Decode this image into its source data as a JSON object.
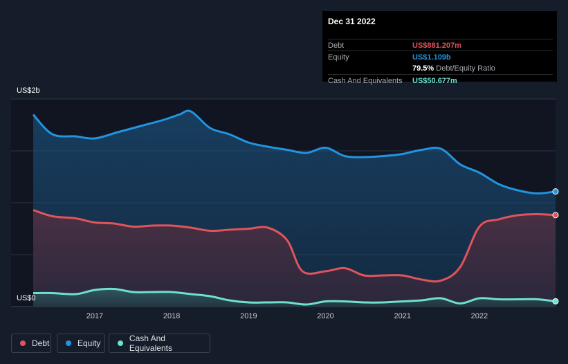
{
  "colors": {
    "debt": "#e0545c",
    "equity": "#2394df",
    "cash": "#6ee0cf",
    "background": "#161d2a",
    "plot_background": "#101521",
    "grid": "#2c3442"
  },
  "tooltip": {
    "date": "Dec 31 2022",
    "debt_label": "Debt",
    "debt_value": "US$881.207m",
    "equity_label": "Equity",
    "equity_value": "US$1.109b",
    "ratio_value": "79.5%",
    "ratio_label": "Debt/Equity Ratio",
    "cash_label": "Cash And Equivalents",
    "cash_value": "US$50.677m"
  },
  "legend": {
    "debt": "Debt",
    "equity": "Equity",
    "cash": "Cash And Equivalents"
  },
  "chart_data": {
    "type": "area",
    "x_range": [
      2016.2,
      2022.99
    ],
    "y_range": [
      0,
      2
    ],
    "y_tick_labels": {
      "top": "US$2b",
      "bottom": "US$0"
    },
    "x_ticks": [
      2017,
      2018,
      2019,
      2020,
      2021,
      2022
    ],
    "grid": true,
    "legend_position": "bottom-left",
    "series": [
      {
        "key": "equity",
        "name": "Equity",
        "points": [
          [
            2016.2,
            1.85
          ],
          [
            2016.45,
            1.66
          ],
          [
            2016.75,
            1.64
          ],
          [
            2017.0,
            1.62
          ],
          [
            2017.3,
            1.68
          ],
          [
            2017.6,
            1.74
          ],
          [
            2017.9,
            1.8
          ],
          [
            2018.1,
            1.85
          ],
          [
            2018.25,
            1.88
          ],
          [
            2018.5,
            1.72
          ],
          [
            2018.75,
            1.66
          ],
          [
            2019.0,
            1.58
          ],
          [
            2019.25,
            1.54
          ],
          [
            2019.5,
            1.51
          ],
          [
            2019.75,
            1.48
          ],
          [
            2020.0,
            1.53
          ],
          [
            2020.25,
            1.45
          ],
          [
            2020.5,
            1.44
          ],
          [
            2020.75,
            1.45
          ],
          [
            2021.0,
            1.47
          ],
          [
            2021.25,
            1.51
          ],
          [
            2021.5,
            1.52
          ],
          [
            2021.75,
            1.37
          ],
          [
            2022.0,
            1.29
          ],
          [
            2022.25,
            1.18
          ],
          [
            2022.5,
            1.12
          ],
          [
            2022.75,
            1.09
          ],
          [
            2022.99,
            1.109
          ]
        ]
      },
      {
        "key": "debt",
        "name": "Debt",
        "points": [
          [
            2016.2,
            0.93
          ],
          [
            2016.45,
            0.87
          ],
          [
            2016.75,
            0.85
          ],
          [
            2017.0,
            0.81
          ],
          [
            2017.25,
            0.8
          ],
          [
            2017.5,
            0.77
          ],
          [
            2017.75,
            0.78
          ],
          [
            2018.0,
            0.78
          ],
          [
            2018.25,
            0.76
          ],
          [
            2018.5,
            0.73
          ],
          [
            2018.75,
            0.74
          ],
          [
            2019.0,
            0.75
          ],
          [
            2019.25,
            0.76
          ],
          [
            2019.5,
            0.64
          ],
          [
            2019.7,
            0.34
          ],
          [
            2020.0,
            0.34
          ],
          [
            2020.25,
            0.37
          ],
          [
            2020.5,
            0.3
          ],
          [
            2020.75,
            0.3
          ],
          [
            2021.0,
            0.3
          ],
          [
            2021.25,
            0.26
          ],
          [
            2021.5,
            0.25
          ],
          [
            2021.75,
            0.38
          ],
          [
            2022.0,
            0.77
          ],
          [
            2022.25,
            0.84
          ],
          [
            2022.5,
            0.88
          ],
          [
            2022.75,
            0.89
          ],
          [
            2022.99,
            0.881
          ]
        ]
      },
      {
        "key": "cash",
        "name": "Cash And Equivalents",
        "points": [
          [
            2016.2,
            0.13
          ],
          [
            2016.45,
            0.13
          ],
          [
            2016.75,
            0.12
          ],
          [
            2017.0,
            0.16
          ],
          [
            2017.25,
            0.17
          ],
          [
            2017.5,
            0.14
          ],
          [
            2017.75,
            0.14
          ],
          [
            2018.0,
            0.14
          ],
          [
            2018.25,
            0.12
          ],
          [
            2018.5,
            0.1
          ],
          [
            2018.75,
            0.06
          ],
          [
            2019.0,
            0.04
          ],
          [
            2019.25,
            0.04
          ],
          [
            2019.5,
            0.04
          ],
          [
            2019.75,
            0.02
          ],
          [
            2020.0,
            0.05
          ],
          [
            2020.25,
            0.05
          ],
          [
            2020.5,
            0.04
          ],
          [
            2020.75,
            0.04
          ],
          [
            2021.0,
            0.05
          ],
          [
            2021.25,
            0.06
          ],
          [
            2021.5,
            0.08
          ],
          [
            2021.75,
            0.03
          ],
          [
            2022.0,
            0.08
          ],
          [
            2022.25,
            0.07
          ],
          [
            2022.5,
            0.07
          ],
          [
            2022.75,
            0.07
          ],
          [
            2022.99,
            0.051
          ]
        ]
      }
    ]
  }
}
